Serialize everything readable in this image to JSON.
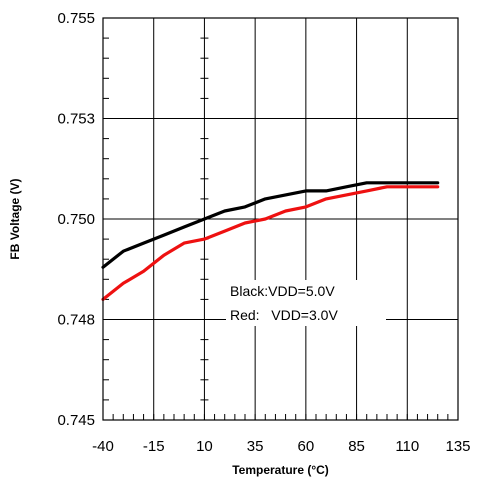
{
  "chart_data": {
    "type": "line",
    "title": "",
    "xlabel": "Temperature (°C)",
    "ylabel": "FB Voltage (V)",
    "xlim": [
      -40,
      135
    ],
    "ylim": [
      0.745,
      0.755
    ],
    "x_ticks": [
      -40,
      -15,
      10,
      35,
      60,
      85,
      110,
      135
    ],
    "x_tick_labels": [
      "-40",
      "-15",
      "10",
      "35",
      "60",
      "85",
      "110",
      "135"
    ],
    "y_ticks": [
      0.745,
      0.7475,
      0.75,
      0.7525,
      0.755
    ],
    "y_tick_labels": [
      "0.745",
      "0.748",
      "0.750",
      "0.753",
      "0.755"
    ],
    "grid": true,
    "annotations": [
      "Black:VDD=5.0V",
      "Red:   VDD=3.0V"
    ],
    "series": [
      {
        "color": "#000000",
        "x": [
          -40,
          -30,
          -20,
          -10,
          0,
          10,
          20,
          30,
          40,
          50,
          60,
          70,
          80,
          90,
          100,
          110,
          125
        ],
        "y": [
          0.7488,
          0.7492,
          0.7494,
          0.7496,
          0.7498,
          0.75,
          0.7502,
          0.7503,
          0.7505,
          0.7506,
          0.7507,
          0.7507,
          0.7508,
          0.7509,
          0.7509,
          0.7509,
          0.7509
        ]
      },
      {
        "color": "#ee1111",
        "x": [
          -40,
          -30,
          -20,
          -10,
          0,
          10,
          20,
          30,
          40,
          50,
          60,
          70,
          80,
          90,
          100,
          110,
          125
        ],
        "y": [
          0.748,
          0.7484,
          0.7487,
          0.7491,
          0.7494,
          0.7495,
          0.7497,
          0.7499,
          0.75,
          0.7502,
          0.7503,
          0.7505,
          0.7506,
          0.7507,
          0.7508,
          0.7508,
          0.7508
        ]
      }
    ]
  }
}
